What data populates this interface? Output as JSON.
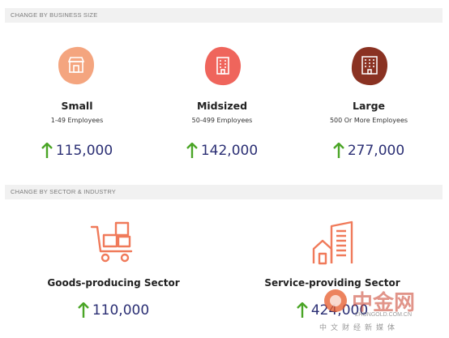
{
  "sections": {
    "business_size_header": "CHANGE BY BUSINESS SIZE",
    "sector_header": "CHANGE BY SECTOR & INDUSTRY"
  },
  "business_sizes": [
    {
      "title": "Small",
      "subtitle": "1-49 Employees",
      "value": "115,000",
      "color": "#f4a57f"
    },
    {
      "title": "Midsized",
      "subtitle": "50-499 Employees",
      "value": "142,000",
      "color": "#ef655c"
    },
    {
      "title": "Large",
      "subtitle": "500 Or More Employees",
      "value": "277,000",
      "color": "#8a3222"
    }
  ],
  "sectors": [
    {
      "title": "Goods-producing Sector",
      "value": "110,000"
    },
    {
      "title": "Service-providing Sector",
      "value": "424,000"
    }
  ],
  "watermark": {
    "brand": "中金网",
    "domain": "ZHONGOLD.COM.CN",
    "tagline": "中文财经新媒体"
  },
  "colors": {
    "arrow_up": "#4aa526",
    "value_text": "#2b2f74",
    "icon_orange": "#f07a5a"
  }
}
